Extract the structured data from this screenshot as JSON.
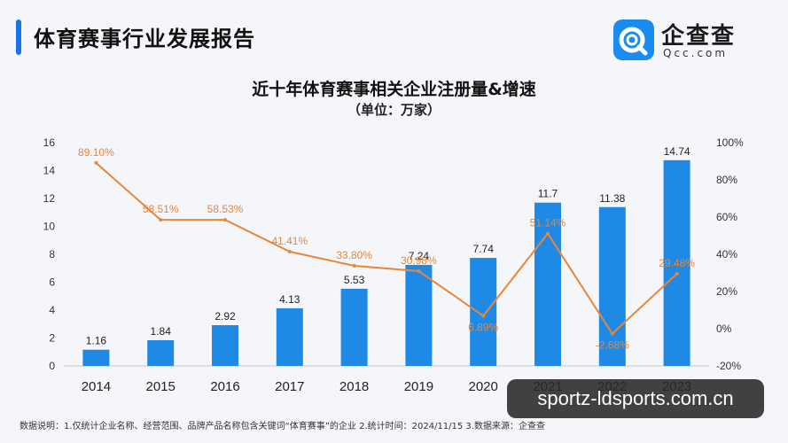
{
  "header": {
    "title": "体育赛事行业发展报告"
  },
  "brand": {
    "name": "企查查",
    "domain": "Qcc.com",
    "color": "#1a8cf0"
  },
  "chart_data": {
    "type": "bar",
    "title": "近十年体育赛事相关企业注册量&增速",
    "subtitle": "（单位：万家）",
    "categories": [
      "2014",
      "2015",
      "2016",
      "2017",
      "2018",
      "2019",
      "2020",
      "2021",
      "2022",
      "2023"
    ],
    "series": [
      {
        "type": "bar",
        "axis": "left",
        "color": "#1f8ae6",
        "values": [
          1.16,
          1.84,
          2.92,
          4.13,
          5.53,
          7.24,
          7.74,
          11.7,
          11.38,
          14.74
        ],
        "labels": [
          "1.16",
          "1.84",
          "2.92",
          "4.13",
          "5.53",
          "7.24",
          "7.74",
          "11.7",
          "11.38",
          "14.74"
        ]
      },
      {
        "type": "line",
        "axis": "right",
        "color": "#e8863a",
        "values": [
          89.1,
          58.51,
          58.53,
          41.41,
          33.8,
          30.98,
          6.89,
          51.14,
          -2.68,
          29.48
        ],
        "labels": [
          "89.10%",
          "58.51%",
          "58.53%",
          "41.41%",
          "33.80%",
          "30.98%",
          "6.89%",
          "51.14%",
          "-2.68%",
          "29.48%"
        ]
      }
    ],
    "y_left": {
      "ylim": [
        0,
        16
      ],
      "ticks": [
        "0",
        "2",
        "4",
        "6",
        "8",
        "10",
        "12",
        "14",
        "16"
      ]
    },
    "y_right": {
      "ylim": [
        -20,
        100
      ],
      "ticks": [
        "-20%",
        "0%",
        "20%",
        "40%",
        "60%",
        "80%",
        "100%"
      ]
    },
    "grid": false,
    "legend": "none"
  },
  "footnote": "数据说明：1.仅统计企业名称、经营范围、品牌产品名称包含关键词“体育赛事”的企业   2.统计时间：2024/11/15   3.数据来源：企查查",
  "watermark": "sportz-ldsports.com.cn"
}
